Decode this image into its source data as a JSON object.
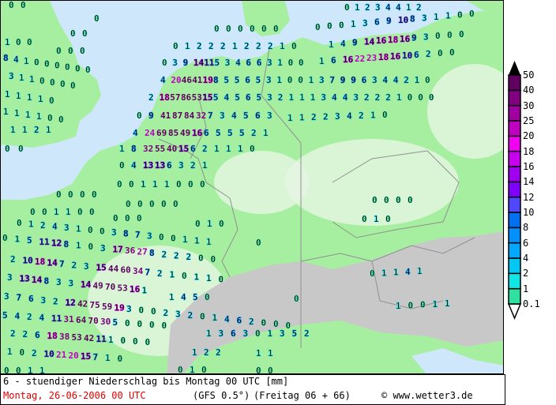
{
  "footer": {
    "title": "6 - stuendiger Niederschlag bis Montag 00 UTC [mm]",
    "valid": "Montag, 26-06-2006  00 UTC",
    "model": "(GFS 0.5°)",
    "run": "(Freitag 06 + 66)",
    "copyright": "© www.wetter3.de"
  },
  "legend": {
    "levels": [
      "0.1",
      "1",
      "2",
      "4",
      "6",
      "8",
      "10",
      "12",
      "14",
      "16",
      "18",
      "20",
      "25",
      "30",
      "40",
      "50"
    ],
    "colors": [
      "#30e0a0",
      "#10e6e6",
      "#00c8f4",
      "#00a8ff",
      "#0090ff",
      "#0070f0",
      "#5048ff",
      "#8000ff",
      "#a000f0",
      "#c800f0",
      "#f000f0",
      "#c000c0",
      "#a000a0",
      "#800080",
      "#600060",
      "#000000"
    ]
  },
  "map": {
    "colors": {
      "sea": "#cfe7fa",
      "land": "#a6eea0",
      "highland": "#e6f6e4",
      "mountains": "#c8c8c8",
      "border": "#909090"
    },
    "labels": [
      [
        "0",
        "1",
        "2",
        "3",
        "4",
        "4",
        "1",
        "2"
      ],
      [
        "0"
      ],
      [
        "0",
        "0",
        "0",
        "1",
        "3",
        "6",
        "9",
        "10",
        "8",
        "3",
        "1",
        "1",
        "0",
        "0"
      ],
      [
        "0",
        "0"
      ],
      [
        "0",
        "0",
        "0",
        "0",
        "0",
        "0"
      ],
      [
        "0",
        "0"
      ],
      [
        "1",
        "0",
        "0"
      ],
      [
        "0",
        "0",
        "0"
      ],
      [
        "8",
        "4",
        "1",
        "0",
        "0",
        "0",
        "0",
        "0",
        "0"
      ],
      [
        "3",
        "1",
        "1",
        "0",
        "0",
        "0",
        "0"
      ],
      [
        "1",
        "1",
        "1",
        "1",
        "0"
      ],
      [
        "1",
        "1",
        "1",
        "1",
        "0",
        "0"
      ],
      [
        "1",
        "1",
        "2",
        "1"
      ],
      [
        "0",
        "0"
      ],
      [
        "0",
        "1",
        "2",
        "2",
        "2",
        "1",
        "2",
        "2",
        "2",
        "1",
        "0"
      ],
      [
        "1",
        "4",
        "9",
        "14",
        "16",
        "18",
        "16",
        "9",
        "3",
        "0",
        "0",
        "0"
      ],
      [
        "0",
        "3",
        "9",
        "14",
        "11",
        "5",
        "3",
        "4",
        "6",
        "6",
        "3",
        "1",
        "0",
        "0"
      ],
      [
        "1",
        "6",
        "16",
        "22",
        "23",
        "18",
        "16",
        "10",
        "6",
        "2",
        "0",
        "0"
      ],
      [
        "4",
        "20",
        "46",
        "41",
        "19",
        "8",
        "5",
        "5",
        "6",
        "5",
        "3",
        "1",
        "0",
        "0",
        "1",
        "3",
        "7",
        "9",
        "9",
        "6",
        "3",
        "4",
        "4",
        "2",
        "1",
        "0"
      ],
      [
        "2",
        "18",
        "57",
        "86",
        "53",
        "15",
        "5",
        "4",
        "5",
        "6",
        "5",
        "3",
        "2",
        "1",
        "1",
        "1",
        "3",
        "4",
        "4",
        "3",
        "2",
        "2",
        "2",
        "1",
        "0",
        "0",
        "0"
      ],
      [
        "0",
        "9",
        "41",
        "87",
        "84",
        "32",
        "7",
        "3",
        "4",
        "5",
        "6",
        "3"
      ],
      [
        "1",
        "1",
        "2",
        "2",
        "3",
        "4",
        "2",
        "1",
        "0"
      ],
      [
        "4",
        "24",
        "69",
        "85",
        "49",
        "16",
        "6",
        "5",
        "5",
        "5",
        "2",
        "1"
      ],
      [
        "1",
        "8",
        "32",
        "55",
        "40",
        "15",
        "6",
        "2",
        "1",
        "1",
        "1",
        "0"
      ],
      [
        "0",
        "4",
        "13",
        "13",
        "6",
        "3",
        "2",
        "1"
      ],
      [
        "0",
        "0",
        "1",
        "1",
        "1",
        "0",
        "0",
        "0"
      ],
      [
        "0",
        "0",
        "0",
        "0"
      ],
      [
        "0",
        "0",
        "0",
        "0",
        "0"
      ],
      [
        "0",
        "0",
        "1",
        "1",
        "0",
        "0"
      ],
      [
        "0",
        "0",
        "0"
      ],
      [
        "0",
        "1",
        "2",
        "4",
        "3",
        "1",
        "0",
        "0",
        "3",
        "8",
        "7",
        "3",
        "0",
        "0",
        "1",
        "1",
        "1"
      ],
      [
        "0",
        "1",
        "0"
      ],
      [
        "0"
      ],
      [
        "0",
        "1",
        "5",
        "11",
        "12",
        "8",
        "1",
        "0",
        "3",
        "17",
        "36",
        "27",
        "8",
        "2",
        "2",
        "2",
        "0",
        "0"
      ],
      [
        "2",
        "10",
        "18",
        "14",
        "7",
        "2",
        "3",
        "15",
        "44",
        "60",
        "34",
        "7",
        "2",
        "1",
        "0",
        "1",
        "1",
        "0"
      ],
      [
        "3",
        "13",
        "14",
        "8",
        "3",
        "3",
        "14",
        "49",
        "70",
        "53",
        "16",
        "1"
      ],
      [
        "1",
        "4",
        "5",
        "0"
      ],
      [
        "3",
        "7",
        "6",
        "3",
        "2",
        "12",
        "42",
        "75",
        "59",
        "19",
        "3",
        "0",
        "0",
        "2",
        "3",
        "2",
        "0",
        "1",
        "4",
        "6",
        "2",
        "0",
        "0",
        "0"
      ],
      [
        "5",
        "4",
        "2",
        "4",
        "11",
        "31",
        "64",
        "70",
        "30",
        "5",
        "0",
        "0",
        "0",
        "0"
      ],
      [
        "1",
        "3",
        "6",
        "3",
        "0",
        "1",
        "3",
        "5",
        "2"
      ],
      [
        "2",
        "2",
        "6",
        "18",
        "38",
        "53",
        "42",
        "11",
        "1",
        "0",
        "0",
        "0"
      ],
      [
        "1",
        "0",
        "2",
        "10",
        "21",
        "20",
        "15",
        "7",
        "1",
        "0"
      ],
      [
        "1",
        "2",
        "2"
      ],
      [
        "1",
        "1"
      ],
      [
        "0",
        "0",
        "1",
        "1"
      ],
      [
        "0",
        "1",
        "0"
      ],
      [
        "0",
        "0"
      ],
      [
        "0",
        "0",
        "0",
        "0"
      ],
      [
        "0",
        "1",
        "0"
      ],
      [
        "0",
        "1",
        "1",
        "4",
        "1"
      ],
      [
        "1",
        "0",
        "0",
        "1",
        "1"
      ],
      [
        "0"
      ]
    ]
  }
}
